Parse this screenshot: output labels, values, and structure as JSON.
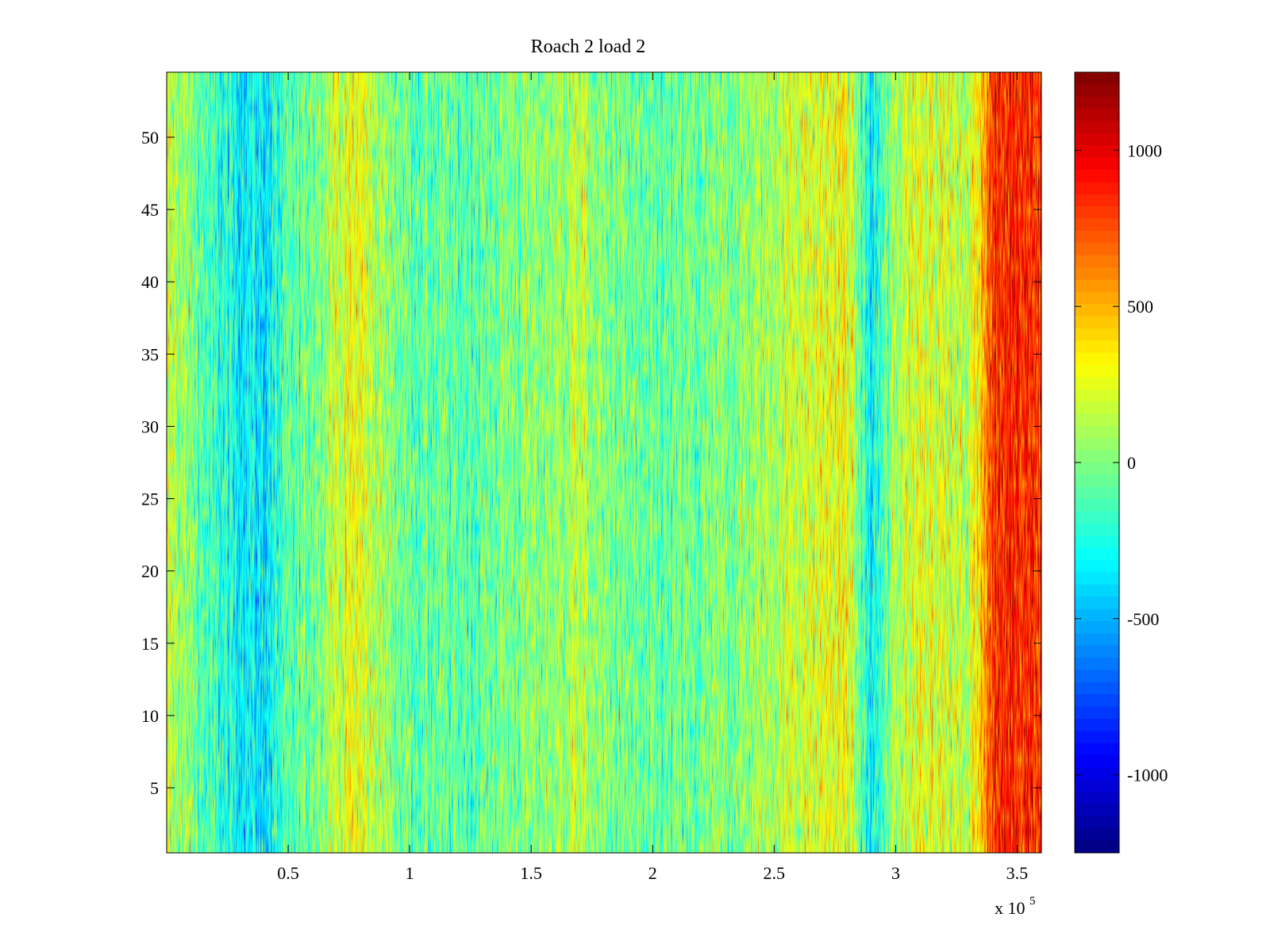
{
  "chart_data": {
    "type": "heatmap",
    "title": "Roach 2 load 2",
    "xlabel": "",
    "ylabel": "",
    "x_multiplier_label": "x 10",
    "x_multiplier_exponent": "5",
    "xlim": [
      0,
      3.6
    ],
    "ylim": [
      0.5,
      54.5
    ],
    "x_ticks": [
      {
        "value": 0.5,
        "label": "0.5"
      },
      {
        "value": 1,
        "label": "1"
      },
      {
        "value": 1.5,
        "label": "1.5"
      },
      {
        "value": 2,
        "label": "2"
      },
      {
        "value": 2.5,
        "label": "2.5"
      },
      {
        "value": 3,
        "label": "3"
      },
      {
        "value": 3.5,
        "label": "3.5"
      }
    ],
    "y_ticks": [
      {
        "value": 5,
        "label": "5"
      },
      {
        "value": 10,
        "label": "10"
      },
      {
        "value": 15,
        "label": "15"
      },
      {
        "value": 20,
        "label": "20"
      },
      {
        "value": 25,
        "label": "25"
      },
      {
        "value": 30,
        "label": "30"
      },
      {
        "value": 35,
        "label": "35"
      },
      {
        "value": 40,
        "label": "40"
      },
      {
        "value": 45,
        "label": "45"
      },
      {
        "value": 50,
        "label": "50"
      }
    ],
    "colorbar": {
      "colormap": "jet",
      "clim": [
        -1250,
        1250
      ],
      "ticks": [
        {
          "value": 1000,
          "label": "1000"
        },
        {
          "value": 500,
          "label": "500"
        },
        {
          "value": 0,
          "label": "0"
        },
        {
          "value": -500,
          "label": "-500"
        },
        {
          "value": -1000,
          "label": "-1000"
        }
      ]
    },
    "rows": 54,
    "column_trend_x": [
      0,
      0.1,
      0.2,
      0.3,
      0.4,
      0.5,
      0.6,
      0.7,
      0.8,
      0.9,
      1.0,
      1.2,
      1.4,
      1.6,
      1.7,
      1.8,
      2.0,
      2.2,
      2.4,
      2.6,
      2.8,
      2.9,
      3.0,
      3.1,
      3.2,
      3.3,
      3.4,
      3.5,
      3.6
    ],
    "column_trend_mean": [
      150,
      0,
      -200,
      -300,
      -350,
      -150,
      0,
      200,
      250,
      50,
      -50,
      -100,
      0,
      50,
      150,
      0,
      -100,
      -50,
      50,
      200,
      300,
      -350,
      100,
      300,
      200,
      150,
      800,
      900,
      850
    ],
    "grid": false,
    "legend": "none"
  }
}
